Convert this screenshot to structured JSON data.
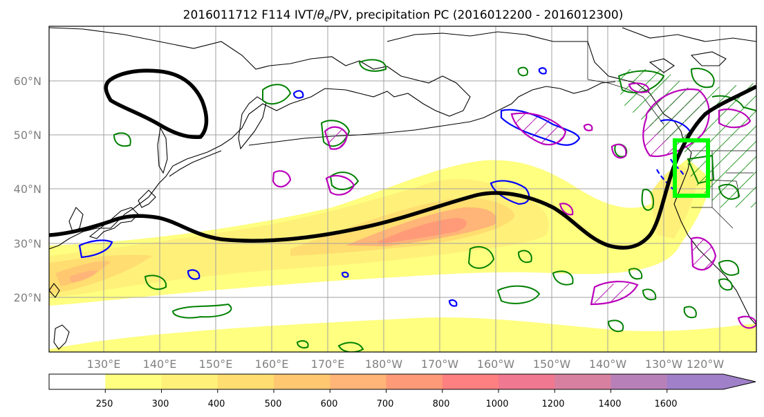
{
  "figure": {
    "title_prefix": "2016011712 F114 IVT/",
    "title_theta": "θ",
    "title_sub": "e",
    "title_suffix": "/PV, precipitation PC (2016012200 - 2016012300)"
  },
  "map": {
    "lat_labels": [
      "60°N",
      "50°N",
      "40°N",
      "30°N",
      "20°N"
    ],
    "lon_labels": [
      "130°E",
      "140°E",
      "150°E",
      "160°E",
      "170°E",
      "180°W",
      "170°W",
      "160°W",
      "150°W",
      "140°W",
      "130°W",
      "120°W"
    ],
    "highlight_box_color": "#00ff00",
    "jet_contour_color": "#000000",
    "pv_contour_color": "#0000ff",
    "theta_contour_color": "#bb00bb",
    "precip_contour_color": "#008000"
  },
  "colorbar": {
    "labels": [
      "250",
      "300",
      "400",
      "500",
      "600",
      "700",
      "800",
      "1000",
      "1200",
      "1400",
      "1600"
    ],
    "colors": [
      "#ffffff",
      "#ffff80",
      "#fff07a",
      "#ffdd70",
      "#ffc870",
      "#ffb478",
      "#ff9a78",
      "#ff8080",
      "#f07890",
      "#d880a0",
      "#b880b8",
      "#a080c8"
    ]
  }
}
